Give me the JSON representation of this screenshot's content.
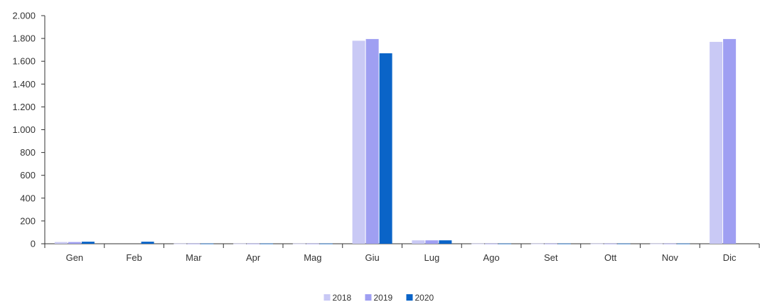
{
  "chart_data": {
    "type": "bar",
    "categories": [
      "Gen",
      "Feb",
      "Mar",
      "Apr",
      "Mag",
      "Giu",
      "Lug",
      "Ago",
      "Set",
      "Ott",
      "Nov",
      "Dic"
    ],
    "series": [
      {
        "name": "2018",
        "color": "#c9c9f5",
        "values": [
          15,
          0,
          2,
          2,
          2,
          1780,
          30,
          2,
          2,
          2,
          2,
          1770
        ]
      },
      {
        "name": "2019",
        "color": "#9f9ff2",
        "values": [
          15,
          0,
          2,
          2,
          2,
          1795,
          30,
          2,
          2,
          2,
          2,
          1795
        ]
      },
      {
        "name": "2020",
        "color": "#0a64c8",
        "values": [
          18,
          18,
          2,
          2,
          2,
          1670,
          30,
          2,
          2,
          2,
          2,
          0
        ]
      }
    ],
    "ylim": [
      0,
      2000
    ],
    "yticks": [
      0,
      200,
      400,
      600,
      800,
      1000,
      1200,
      1400,
      1600,
      1800,
      2000
    ],
    "ytick_labels": [
      "0",
      "200",
      "400",
      "600",
      "800",
      "1.000",
      "1.200",
      "1.400",
      "1.600",
      "1.800",
      "2.000"
    ],
    "title": "",
    "xlabel": "",
    "ylabel": "",
    "grid": false,
    "legend_position": "bottom"
  }
}
